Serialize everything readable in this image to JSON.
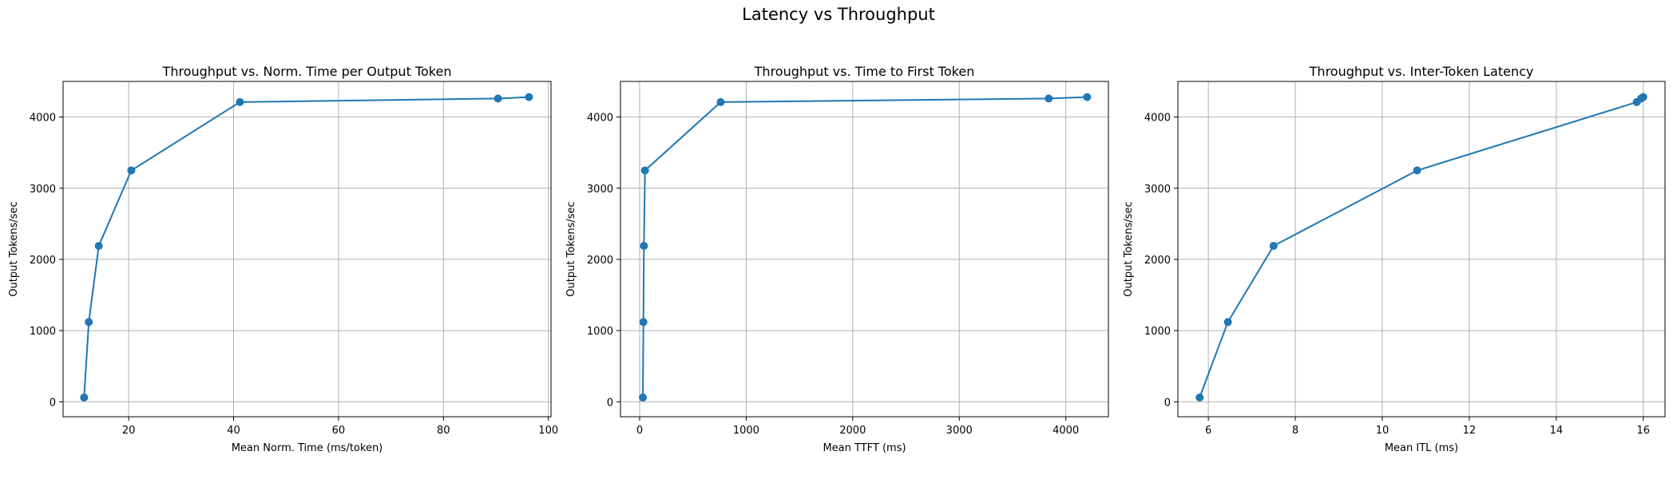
{
  "figure_title": "Latency vs Throughput",
  "chart_data": [
    {
      "type": "line",
      "title": "Throughput vs. Norm. Time per Output Token",
      "xlabel": "Mean Norm. Time (ms/token)",
      "ylabel": "Output Tokens/sec",
      "xlim": [
        7.5,
        100.5
      ],
      "ylim": [
        -210,
        4500
      ],
      "xticks": [
        20,
        40,
        60,
        80,
        100
      ],
      "yticks": [
        0,
        1000,
        2000,
        3000,
        4000
      ],
      "grid": true,
      "marker": "circle",
      "color": "#1f77b4",
      "x": [
        11.5,
        12.4,
        14.3,
        20.5,
        41.2,
        90.4,
        96.3
      ],
      "y": [
        60,
        1120,
        2190,
        3250,
        4210,
        4260,
        4280
      ]
    },
    {
      "type": "line",
      "title": "Throughput vs. Time to First Token",
      "xlabel": "Mean TTFT (ms)",
      "ylabel": "Output Tokens/sec",
      "xlim": [
        -180,
        4400
      ],
      "ylim": [
        -210,
        4500
      ],
      "xticks": [
        0,
        1000,
        2000,
        3000,
        4000
      ],
      "yticks": [
        0,
        1000,
        2000,
        3000,
        4000
      ],
      "grid": true,
      "marker": "circle",
      "color": "#1f77b4",
      "x": [
        30,
        35,
        40,
        50,
        760,
        3840,
        4200
      ],
      "y": [
        60,
        1120,
        2190,
        3250,
        4210,
        4260,
        4280
      ]
    },
    {
      "type": "line",
      "title": "Throughput vs. Inter-Token Latency",
      "xlabel": "Mean ITL (ms)",
      "ylabel": "Output Tokens/sec",
      "xlim": [
        5.3,
        16.5
      ],
      "ylim": [
        -210,
        4500
      ],
      "xticks": [
        6,
        8,
        10,
        12,
        14,
        16
      ],
      "yticks": [
        0,
        1000,
        2000,
        3000,
        4000
      ],
      "grid": true,
      "marker": "circle",
      "color": "#1f77b4",
      "x": [
        5.8,
        6.45,
        7.5,
        10.8,
        15.85,
        15.95,
        16.0
      ],
      "y": [
        60,
        1120,
        2190,
        3250,
        4210,
        4260,
        4280
      ]
    }
  ]
}
